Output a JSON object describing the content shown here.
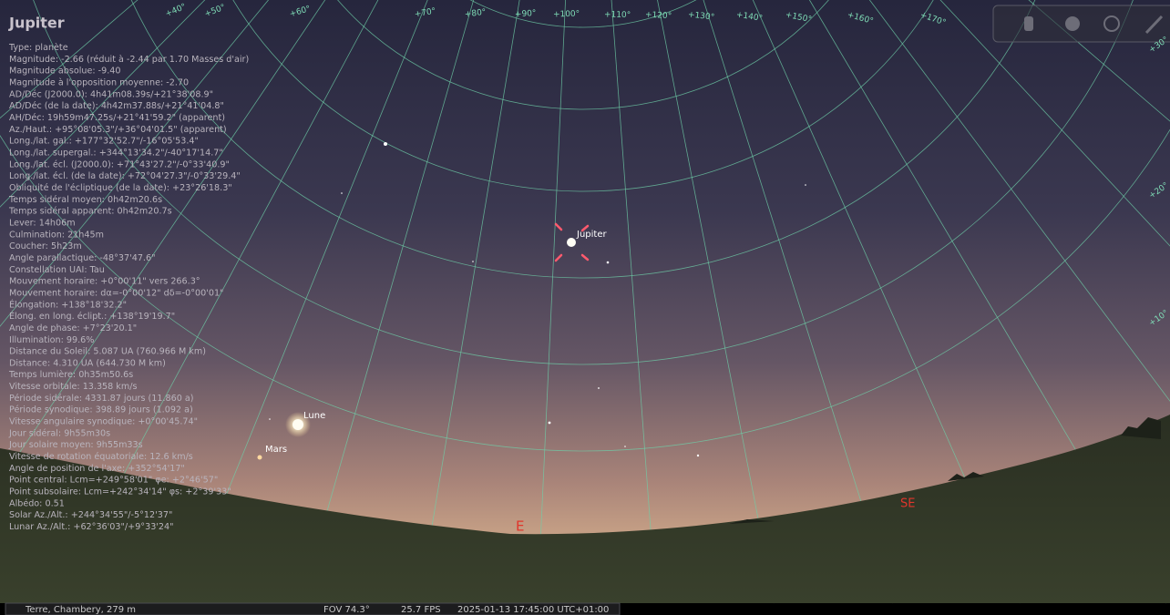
{
  "object_info": {
    "title": "Jupiter",
    "lines": [
      "Type: planète",
      "Magnitude: -2.66 (réduit à -2.44 par 1.70 Masses d'air)",
      "Magnitude absolue: -9.40",
      "Magnitude à l'opposition moyenne: -2.70",
      "AD/Déc (J2000.0): 4h41m08.39s/+21°38'08.9\"",
      "AD/Déc (de la date): 4h42m37.88s/+21°41'04.8\"",
      "AH/Déc: 19h59m47.25s/+21°41'59.2\" (apparent)",
      "Az./Haut.: +95°08'05.3\"/+36°04'01.5\" (apparent)",
      "Long./lat. gal.: +177°32'52.7\"/-16°05'53.4\"",
      "Long./lat. supergal.: +344°13'34.2\"/-40°17'14.7\"",
      "Long./lat. écl. (J2000.0): +71°43'27.2\"/-0°33'40.9\"",
      "Long./lat. écl. (de la date): +72°04'27.3\"/-0°33'29.4\"",
      "Obliquité de l'écliptique (de la date): +23°26'18.3\"",
      "Temps sidéral moyen: 0h42m20.6s",
      "Temps sidéral apparent: 0h42m20.7s",
      "Lever: 14h06m",
      "Culmination: 21h45m",
      "Coucher: 5h23m",
      "Angle parallactique: -48°37'47.6\"",
      "Constellation UAI: Tau",
      "Mouvement horaire: +0°00'11\" vers 266.3°",
      "Mouvement horaire: dα=-0°00'12\" dδ=-0°00'01\"",
      "Élongation: +138°18'32.2\"",
      "Élong. en long. éclipt.: +138°19'19.7\"",
      "Angle de phase: +7°23'20.1\"",
      "Illumination: 99.6%",
      "Distance du Soleil: 5.087 UA (760.966 M km)",
      "Distance: 4.310 UA (644.730 M km)",
      "Temps lumière: 0h35m50.6s",
      "Vitesse orbitale: 13.358 km/s",
      "Période sidérale: 4331.87 jours (11.860 a)",
      "Période synodique: 398.89 jours (1.092 a)",
      "Vitesse angulaire synodique: +0°00'45.74\"",
      "Jour sidéral: 9h55m30s",
      "Jour solaire moyen: 9h55m33s",
      "Vitesse de rotation équatoriale: 12.6 km/s",
      "Angle de position de l'axe: +352°54'17\"",
      "Point central: Lcm=+249°58'01\" φe: +2°46'57\"",
      "Point subsolaire: Lcm=+242°34'14\" φs: +2°39'33\"",
      "Albédo: 0.51",
      "Solar Az./Alt.: +244°34'55\"/-5°12'37\"",
      "Lunar Az./Alt.: +62°36'03\"/+9°33'24\""
    ]
  },
  "sky_labels": {
    "jupiter": "Jupiter",
    "moon": "Lune",
    "mars": "Mars",
    "east": "E",
    "southeast": "SE"
  },
  "grid_labels": {
    "azimuth": [
      "+40°",
      "+50°",
      "+60°",
      "+70°",
      "+80°",
      "+90°",
      "+100°",
      "+110°",
      "+120°",
      "+130°",
      "+140°",
      "+150°",
      "+160°",
      "+170°"
    ],
    "altitude": [
      "+10°",
      "+20°",
      "+30°"
    ]
  },
  "status_bar": {
    "location": "Terre, Chambery, 279 m",
    "fov": "FOV 74.3°",
    "fps": "25.7 FPS",
    "datetime": "2025-01-13 17:45:00 UTC+01:00"
  }
}
